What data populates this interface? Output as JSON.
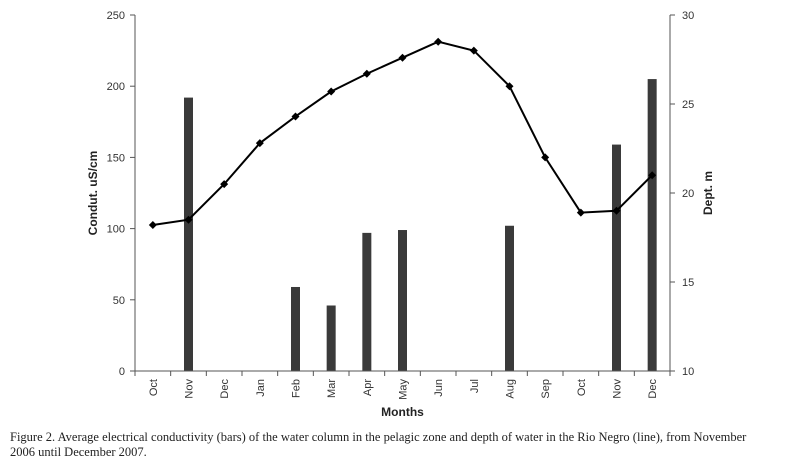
{
  "chart_data": {
    "type": "bar+line",
    "categories": [
      "Oct",
      "Nov",
      "Dec",
      "Jan",
      "Feb",
      "Mar",
      "Apr",
      "May",
      "Jun",
      "Jul",
      "Aug",
      "Sep",
      "Oct",
      "Nov",
      "Dec"
    ],
    "bars": {
      "values": [
        null,
        192,
        null,
        null,
        59,
        46,
        97,
        99,
        null,
        null,
        102,
        null,
        null,
        159,
        205
      ],
      "color": "#3a3a3a",
      "axis": "left"
    },
    "line": {
      "values": [
        18.2,
        18.5,
        20.5,
        22.8,
        24.3,
        25.7,
        26.7,
        27.6,
        28.5,
        28.0,
        26.0,
        22.0,
        18.9,
        19.0,
        21.0
      ],
      "color": "#000000",
      "marker": "diamond",
      "axis": "right"
    },
    "y_left": {
      "label": "Condut. uS/cm",
      "range": [
        0,
        250
      ],
      "ticks": [
        "0",
        "50",
        "100",
        "150",
        "200",
        "250"
      ]
    },
    "y_right": {
      "label": "Dept. m",
      "range": [
        10,
        30
      ],
      "ticks": [
        "10",
        "15",
        "20",
        "25",
        "30"
      ]
    },
    "xlabel": "Months",
    "grid": false,
    "legend": "none"
  },
  "caption": {
    "line1": "Figure 2. Average electrical conductivity (bars) of the water column in the pelagic zone and depth of water in the Rio Negro (line), from November",
    "line2": "2006 until December 2007."
  }
}
